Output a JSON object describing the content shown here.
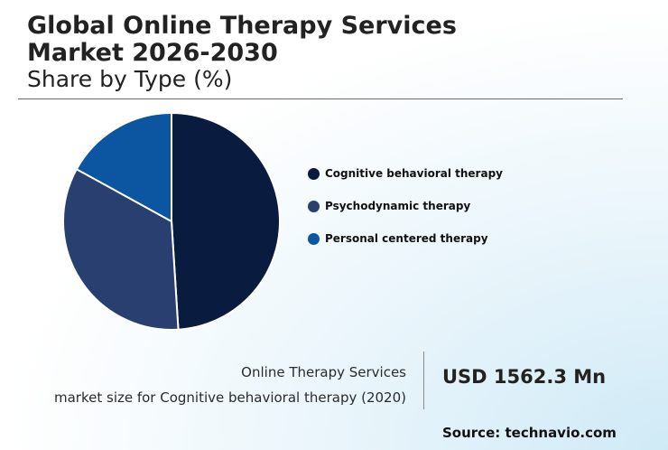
{
  "header": {
    "title": "Global Online Therapy Services\nMarket 2026-2030",
    "subtitle": "Share by Type (%)"
  },
  "chart_data": {
    "type": "pie",
    "title": "Share by Type (%)",
    "categories": [
      "Cognitive behavioral therapy",
      "Psychodynamic therapy",
      "Personal centered therapy"
    ],
    "values": [
      49,
      34,
      17
    ],
    "colors": [
      "#0a1b40",
      "#283f70",
      "#0b55a1"
    ],
    "legend_position": "right"
  },
  "info": {
    "label_line1": "Online Therapy Services",
    "label_line2": "market size for Cognitive behavioral therapy (2020)",
    "value": "USD 1562.3 Mn"
  },
  "source": "Source: technavio.com"
}
